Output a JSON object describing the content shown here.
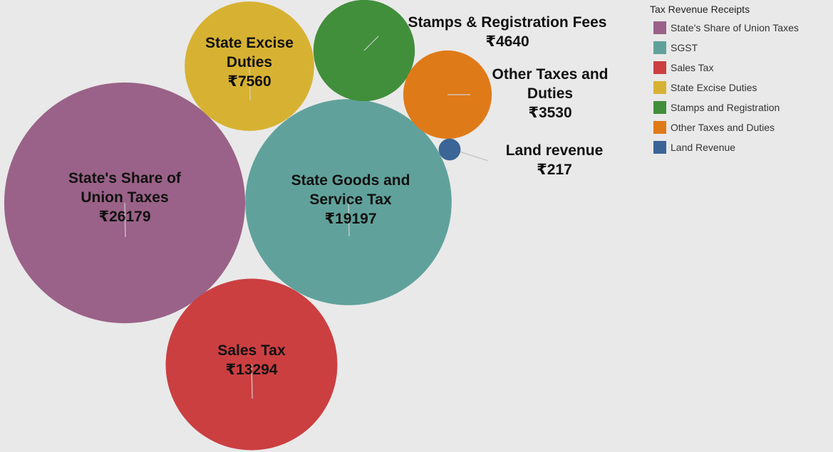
{
  "chart_data": {
    "type": "bubble",
    "legend_title": "Tax Revenue Receipts",
    "categories": [
      "State's Share of Union Taxes",
      "SGST",
      "Sales Tax",
      "State Excise Duties",
      "Stamps and Registration",
      "Other Taxes and Duties",
      "Land Revenue"
    ],
    "labels": [
      "State's Share of Union Taxes",
      "State Goods and Service Tax",
      "Sales Tax",
      "State Excise Duties",
      "Stamps & Registration Fees",
      "Other Taxes and Duties",
      "Land revenue"
    ],
    "values": [
      26179,
      19197,
      13294,
      7560,
      4640,
      3530,
      217
    ],
    "value_labels": [
      "₹26179",
      "₹19197",
      "₹13294",
      "₹7560",
      "₹4640",
      "₹3530",
      "₹217"
    ],
    "colors": [
      "#9a6288",
      "#60a29b",
      "#cb3f41",
      "#d7b232",
      "#418e3b",
      "#df7a18",
      "#3b6596"
    ]
  }
}
